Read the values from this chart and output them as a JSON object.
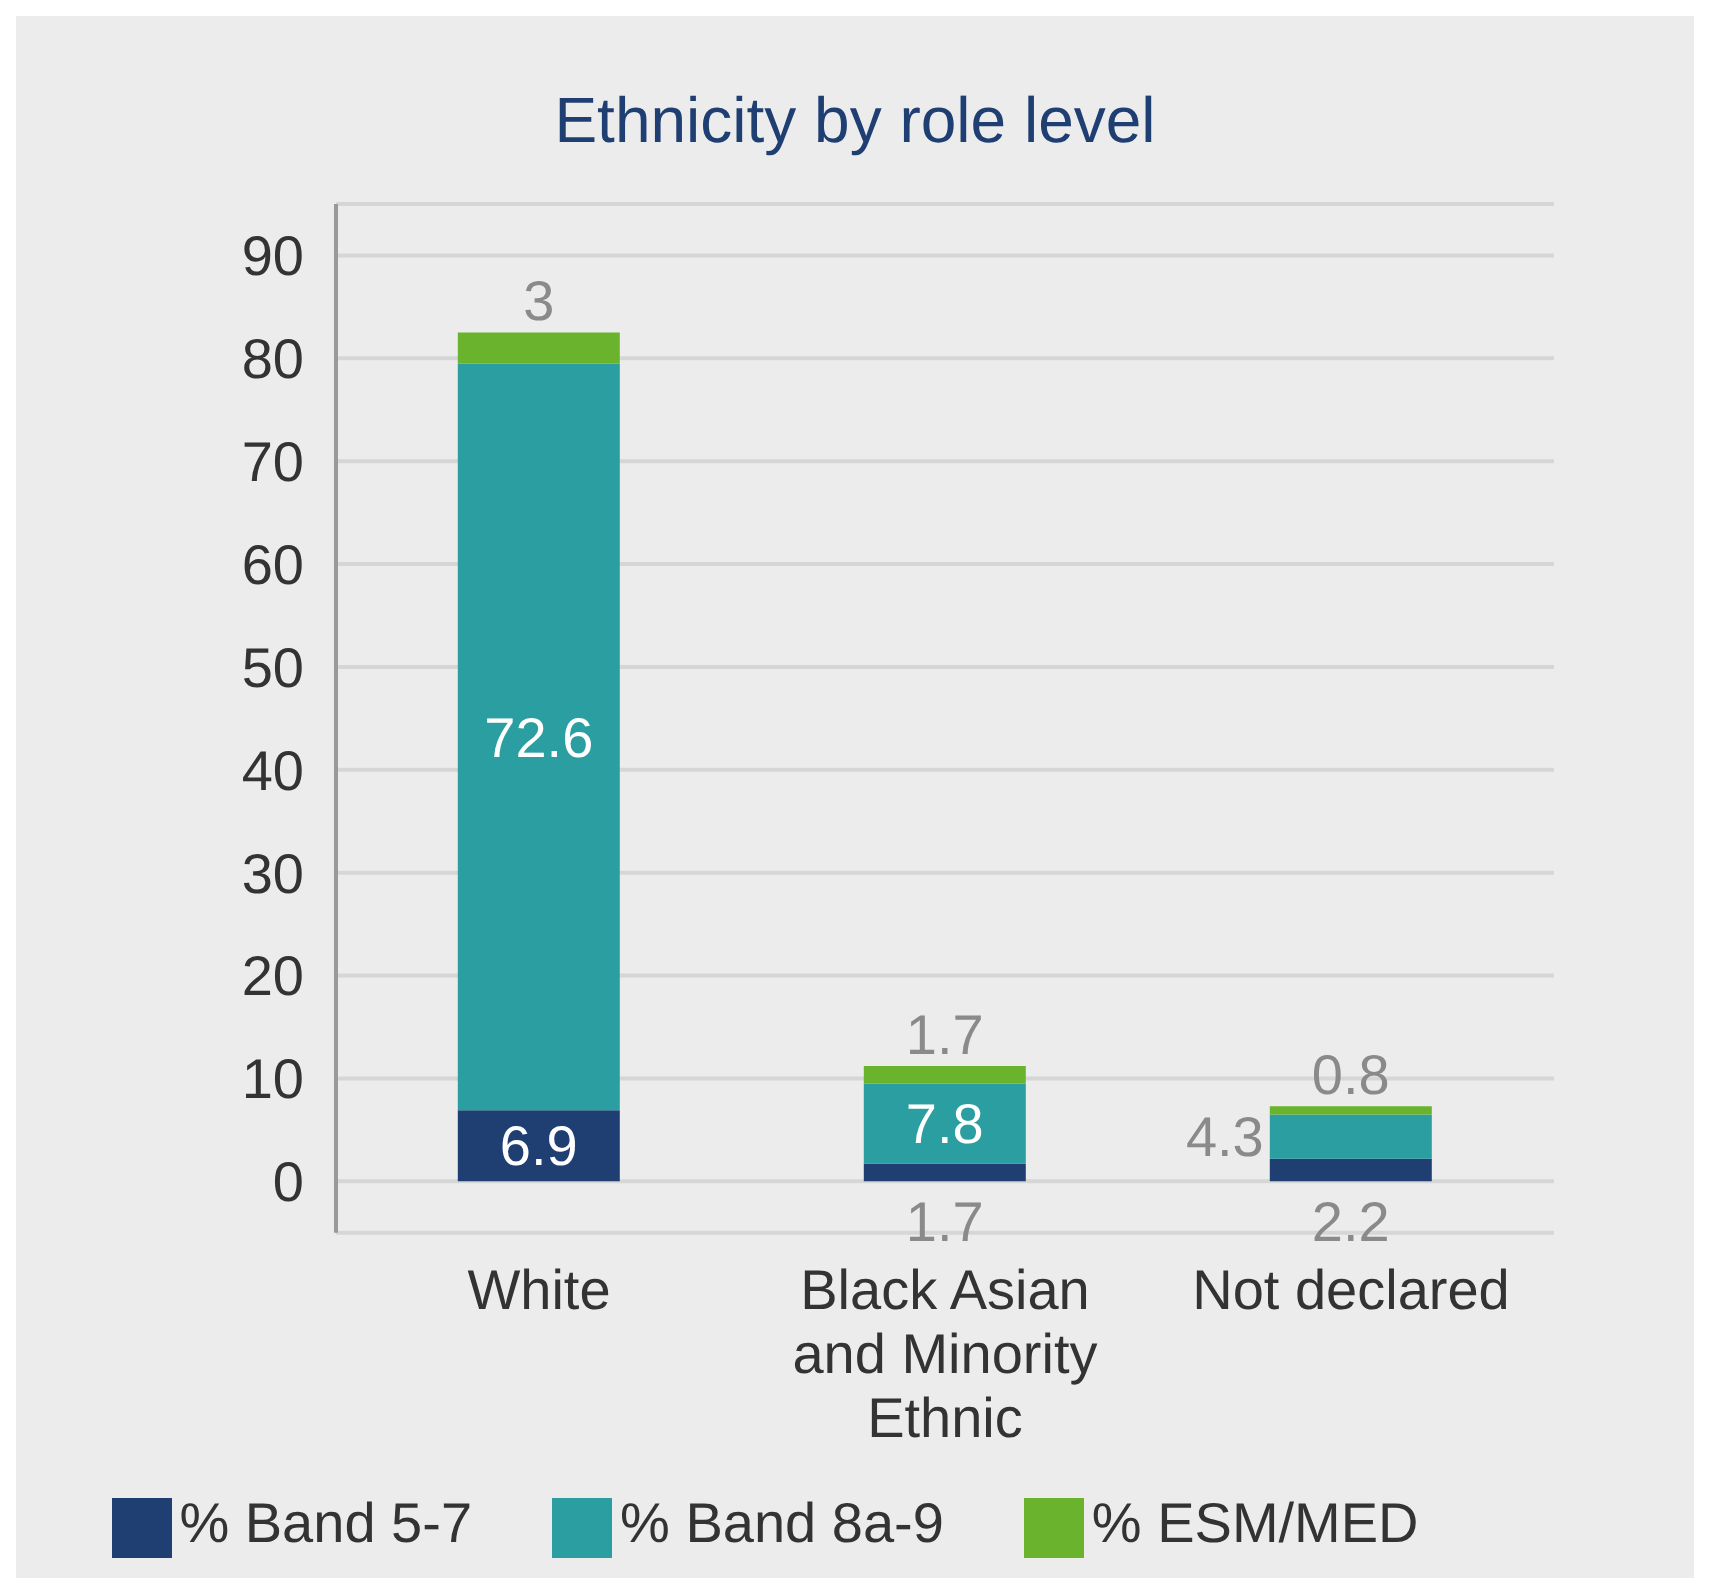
{
  "chart_data": {
    "type": "bar",
    "title": "Ethnicity by role level",
    "categories": [
      "White",
      "Black Asian and Minority Ethnic",
      "Not declared"
    ],
    "stacked": true,
    "series": [
      {
        "name": "% Band 5-7",
        "color": "#1f3f73",
        "values": [
          6.9,
          1.7,
          2.2
        ]
      },
      {
        "name": "% Band 8a-9",
        "color": "#2a9ea0",
        "values": [
          72.6,
          7.8,
          4.3
        ]
      },
      {
        "name": "% ESM/MED",
        "color": "#6ab42d",
        "values": [
          3,
          1.7,
          0.8
        ]
      }
    ],
    "ylim": [
      -5,
      95
    ],
    "yticks": [
      0,
      10,
      20,
      30,
      40,
      50,
      60,
      70,
      80,
      90
    ],
    "grid": "y",
    "legend": "bottom",
    "data_labels": true
  }
}
